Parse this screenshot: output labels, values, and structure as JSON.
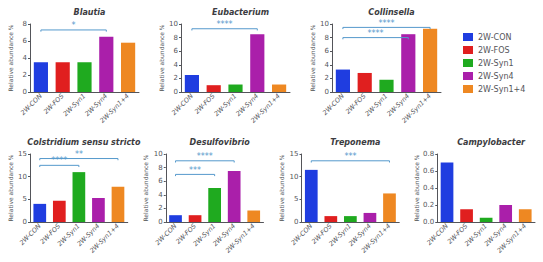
{
  "chart_data": [
    {
      "type": "bar",
      "title": "Blautia",
      "categories": [
        "2W-CON",
        "2W-FOS",
        "2W-Syn1",
        "2W-Syn4",
        "2W-Syn1+4"
      ],
      "colors": [
        "#1f3de0",
        "#e01f1f",
        "#1faa1f",
        "#aa1faa",
        "#ee8822"
      ],
      "values": [
        3.5,
        3.5,
        3.5,
        6.5,
        5.8
      ],
      "ylabel": "Relative abundance %",
      "ylim": [
        0,
        8
      ],
      "yticks": [
        0,
        2,
        4,
        6,
        8
      ],
      "grid": false,
      "annotations": [
        {
          "text": "*",
          "from": "2W-CON",
          "to": "2W-Syn4",
          "y": 7.3,
          "color": "#5599cc"
        }
      ]
    },
    {
      "type": "bar",
      "title": "Eubacterium",
      "categories": [
        "2W-CON",
        "2W-FOS",
        "2W-Syn1",
        "2W-Syn4",
        "2W-Syn1+4"
      ],
      "colors": [
        "#1f3de0",
        "#e01f1f",
        "#1faa1f",
        "#aa1faa",
        "#ee8822"
      ],
      "values": [
        2.5,
        1.0,
        1.1,
        8.5,
        1.1
      ],
      "ylabel": "Relative abundance %",
      "ylim": [
        0,
        10
      ],
      "yticks": [
        0,
        2,
        4,
        6,
        8,
        10
      ],
      "grid": false,
      "annotations": [
        {
          "text": "****",
          "from": "2W-CON",
          "to": "2W-Syn4",
          "y": 9.3,
          "color": "#5599cc"
        }
      ]
    },
    {
      "type": "bar",
      "title": "Collinsella",
      "categories": [
        "2W-CON",
        "2W-FOS",
        "2W-Syn1",
        "2W-Syn4",
        "2W-Syn1+4"
      ],
      "colors": [
        "#1f3de0",
        "#e01f1f",
        "#1faa1f",
        "#aa1faa",
        "#ee8822"
      ],
      "values": [
        3.3,
        2.8,
        1.8,
        8.5,
        9.3
      ],
      "ylabel": "Relative abundance %",
      "ylim": [
        0,
        10
      ],
      "yticks": [
        0,
        2,
        4,
        6,
        8,
        10
      ],
      "grid": false,
      "legend": "right",
      "annotations": [
        {
          "text": "****",
          "from": "2W-CON",
          "to": "2W-Syn1+4",
          "y": 9.5,
          "color": "#5599cc"
        },
        {
          "text": "****",
          "from": "2W-CON",
          "to": "2W-Syn4",
          "y": 8.0,
          "color": "#5599cc"
        }
      ]
    },
    {
      "type": "bar",
      "title": "Colstridium sensu stricto",
      "categories": [
        "2W-CON",
        "2W-FOS",
        "2W-Syn1",
        "2W-Syn4",
        "2W-Syn1+4"
      ],
      "colors": [
        "#1f3de0",
        "#e01f1f",
        "#1faa1f",
        "#aa1faa",
        "#ee8822"
      ],
      "values": [
        4.0,
        4.7,
        11.0,
        5.3,
        7.8
      ],
      "ylabel": "Relative abundance %",
      "ylim": [
        0,
        15
      ],
      "yticks": [
        0,
        5,
        10,
        15
      ],
      "grid": false,
      "annotations": [
        {
          "text": "****",
          "from": "2W-CON",
          "to": "2W-Syn1",
          "y": 12.5,
          "color": "#5599cc"
        },
        {
          "text": "**",
          "from": "2W-CON",
          "to": "2W-Syn1+4",
          "y": 14.0,
          "color": "#5599cc"
        }
      ]
    },
    {
      "type": "bar",
      "title": "Desulfovibrio",
      "categories": [
        "2W-CON",
        "2W-FOS",
        "2W-Syn1",
        "2W-Syn4",
        "2W-Syn1+4"
      ],
      "colors": [
        "#1f3de0",
        "#e01f1f",
        "#1faa1f",
        "#aa1faa",
        "#ee8822"
      ],
      "values": [
        1.0,
        1.0,
        5.0,
        7.5,
        1.7
      ],
      "ylabel": "Relative abundance %",
      "ylim": [
        0,
        10
      ],
      "yticks": [
        0,
        2,
        4,
        6,
        8,
        10
      ],
      "grid": false,
      "annotations": [
        {
          "text": "****",
          "from": "2W-CON",
          "to": "2W-Syn4",
          "y": 9.0,
          "color": "#5599cc"
        },
        {
          "text": "***",
          "from": "2W-CON",
          "to": "2W-Syn1",
          "y": 7.0,
          "color": "#5599cc"
        }
      ]
    },
    {
      "type": "bar",
      "title": "Treponema",
      "categories": [
        "2W-CON",
        "2W-FOS",
        "2W-Syn1",
        "2W-Syn4",
        "2W-Syn1+4"
      ],
      "colors": [
        "#1f3de0",
        "#e01f1f",
        "#1faa1f",
        "#aa1faa",
        "#ee8822"
      ],
      "values": [
        11.5,
        1.3,
        1.3,
        2.0,
        6.3
      ],
      "ylabel": "Relative abundance %",
      "ylim": [
        0,
        15
      ],
      "yticks": [
        0,
        5,
        10,
        15
      ],
      "grid": false,
      "annotations": [
        {
          "text": "***",
          "from": "2W-CON",
          "to": "2W-Syn1+4",
          "y": 13.5,
          "color": "#5599cc"
        }
      ]
    },
    {
      "type": "bar",
      "title": "Campylobacter",
      "categories": [
        "2W-CON",
        "2W-FOS",
        "2W-Syn1",
        "2W-Syn4",
        "2W-Syn1+4"
      ],
      "colors": [
        "#1f3de0",
        "#e01f1f",
        "#1faa1f",
        "#aa1faa",
        "#ee8822"
      ],
      "values": [
        0.7,
        0.15,
        0.05,
        0.2,
        0.15
      ],
      "ylabel": "Relative abundance %",
      "ylim": [
        0,
        0.8
      ],
      "yticks": [
        {
          "value": 0,
          "label": "0.0"
        },
        0.2,
        0.4,
        0.6,
        0.8
      ],
      "grid": false,
      "annotations": []
    }
  ]
}
